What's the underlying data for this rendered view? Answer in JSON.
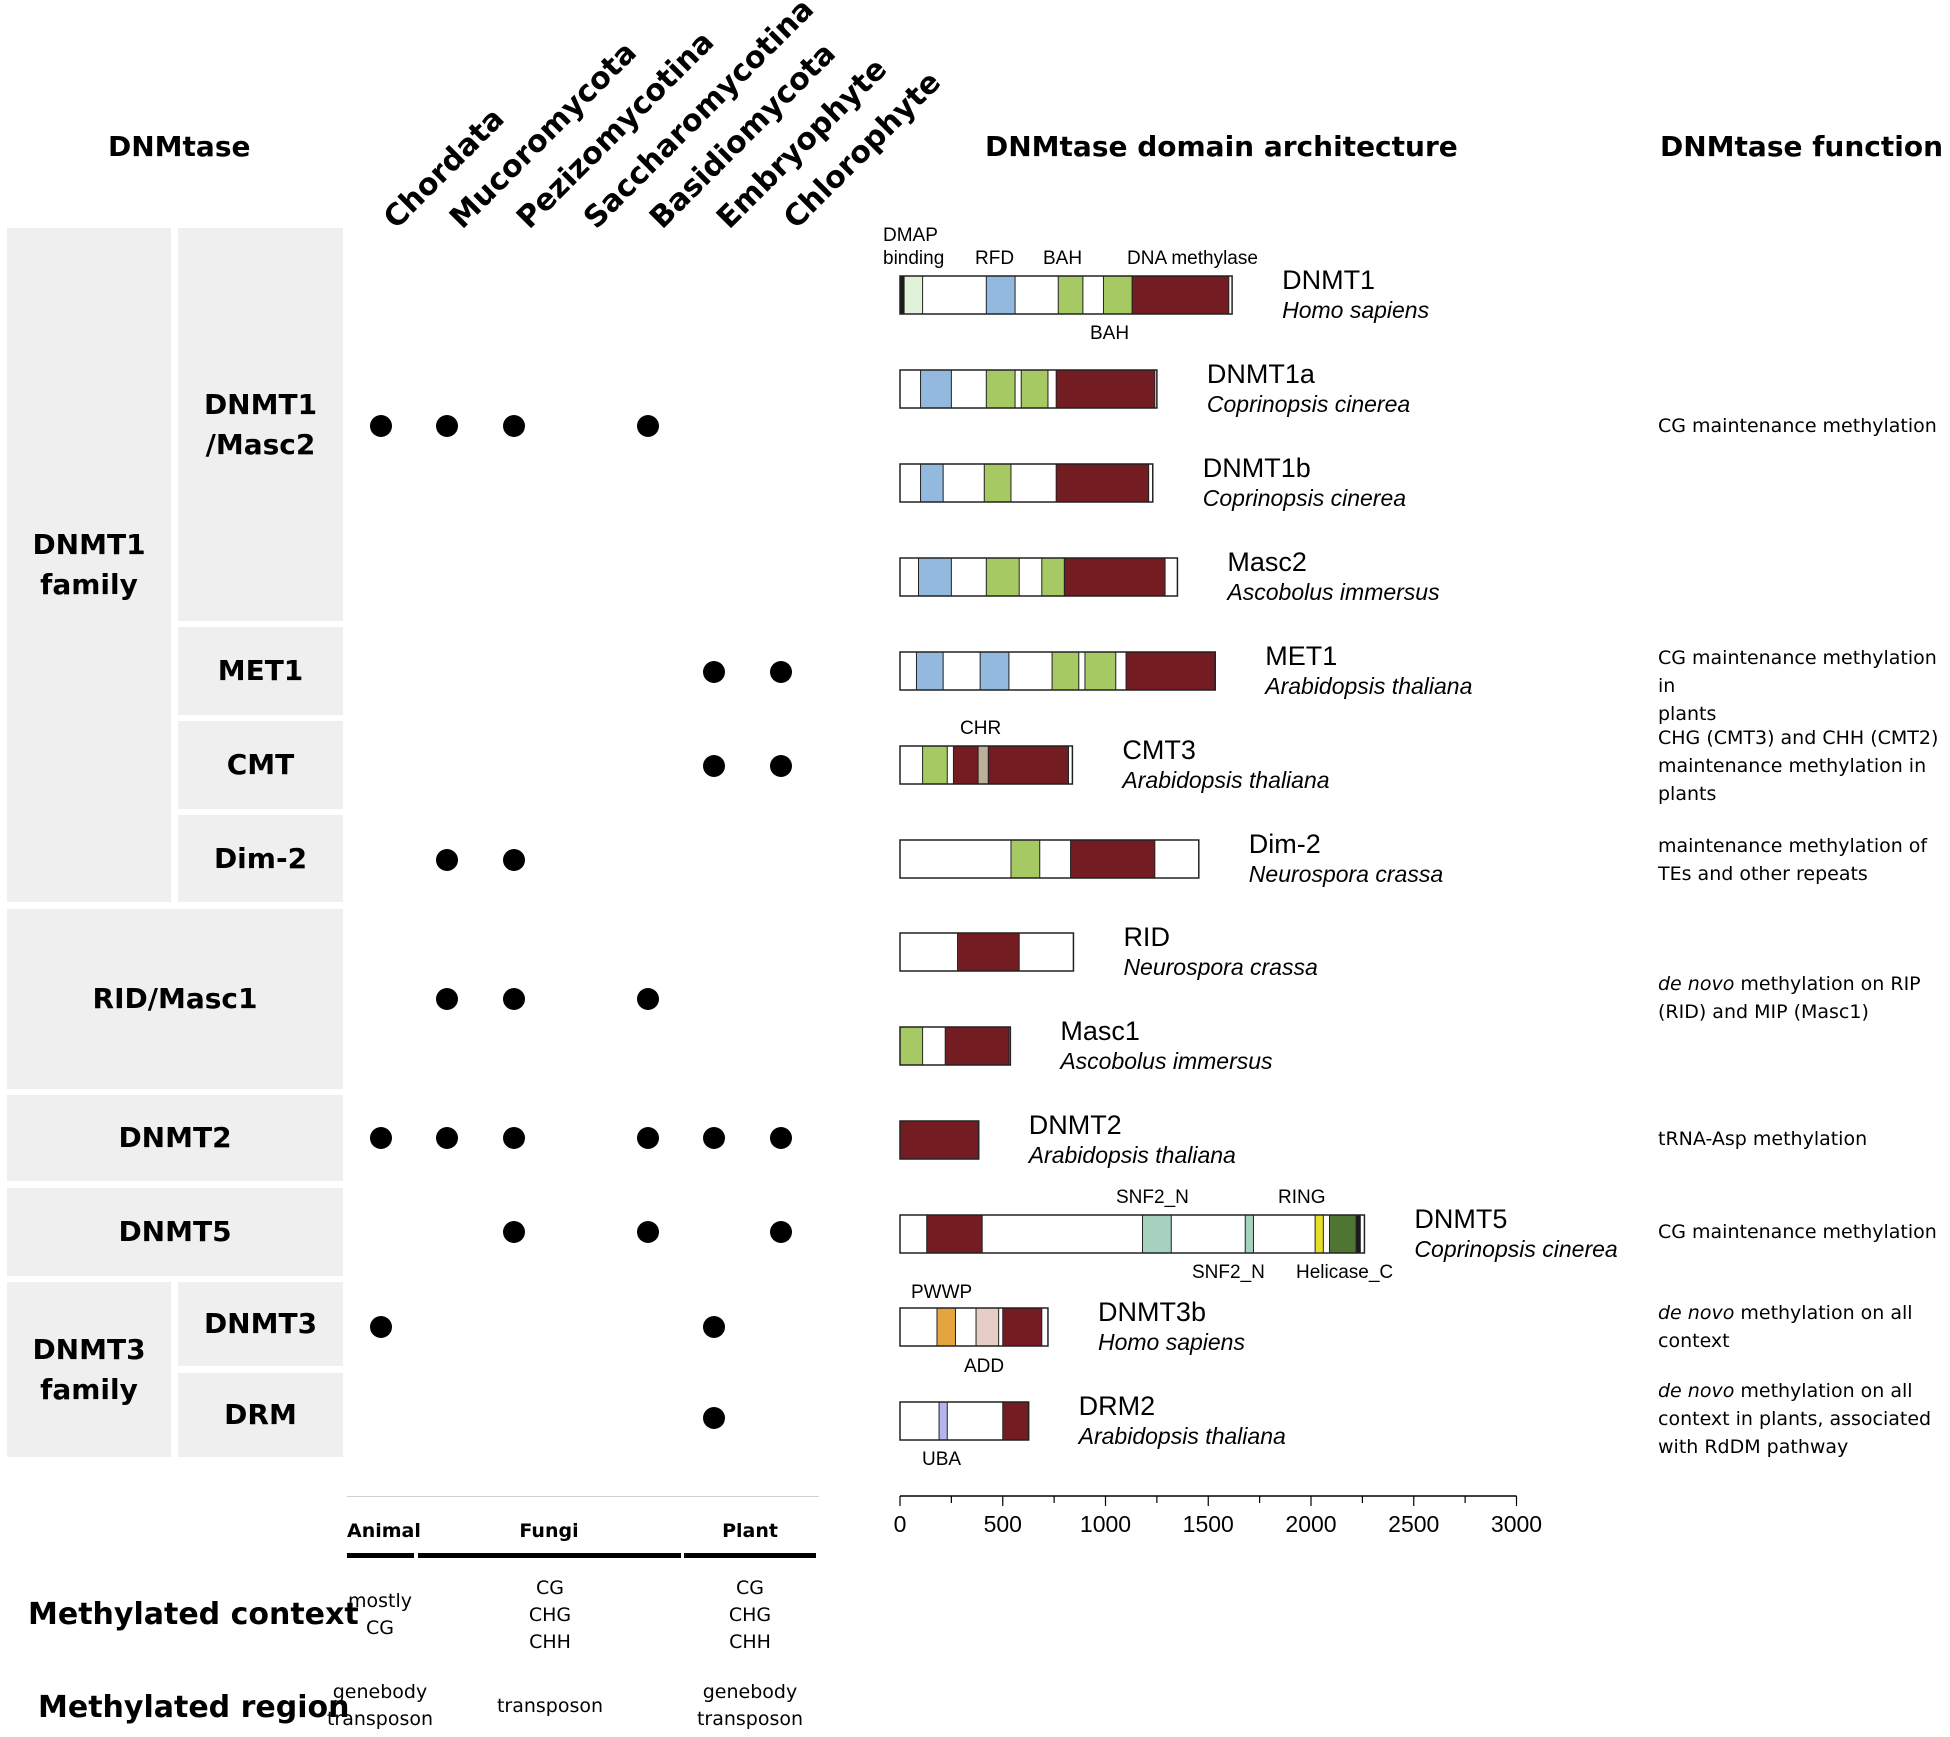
{
  "headers": {
    "dnmtase": "DNMtase",
    "architecture": "DNMtase domain architecture",
    "function": "DNMtase function"
  },
  "taxa": [
    "Chordata",
    "Mucoromycota",
    "Pezizomycotina",
    "Saccharomycotina",
    "Basidiomycota",
    "Embryophyte",
    "Chlorophyte"
  ],
  "families": {
    "dnmt1_family": [
      "DNMT1",
      "family"
    ],
    "dnmt3_family": [
      "DNMT3",
      "family"
    ]
  },
  "subfamilies": {
    "dnmt1_masc2": [
      "DNMT1",
      "/Masc2"
    ],
    "met1": "MET1",
    "cmt": "CMT",
    "dim2": "Dim-2",
    "rid_masc1": "RID/Masc1",
    "dnmt2": "DNMT2",
    "dnmt5": "DNMT5",
    "dnmt3": "DNMT3",
    "drm": "DRM"
  },
  "presence": {
    "dnmt1_masc2": [
      true,
      true,
      true,
      false,
      true,
      false,
      false
    ],
    "met1": [
      false,
      false,
      false,
      false,
      false,
      true,
      true
    ],
    "cmt": [
      false,
      false,
      false,
      false,
      false,
      true,
      true
    ],
    "dim2": [
      false,
      true,
      true,
      false,
      false,
      false,
      false
    ],
    "rid_masc1": [
      false,
      true,
      true,
      false,
      true,
      false,
      false
    ],
    "dnmt2": [
      true,
      true,
      true,
      false,
      true,
      true,
      true
    ],
    "dnmt5": [
      false,
      false,
      true,
      false,
      true,
      false,
      true
    ],
    "dnmt3": [
      true,
      false,
      false,
      false,
      false,
      true,
      false
    ],
    "drm": [
      false,
      false,
      false,
      false,
      false,
      true,
      false
    ]
  },
  "functions": {
    "dnmt1_masc2": [
      "CG maintenance methylation"
    ],
    "met1": [
      "CG maintenance methylation in",
      "plants"
    ],
    "cmt": [
      "CHG (CMT3) and CHH (CMT2)",
      "maintenance methylation in",
      "plants"
    ],
    "dim2": [
      "maintenance methylation of",
      "TEs and other repeats"
    ],
    "rid_masc1_italic": "de novo",
    "rid_masc1": [
      " methylation on RIP",
      "(RID) and MIP (Masc1)"
    ],
    "dnmt2": [
      "tRNA-Asp methylation"
    ],
    "dnmt5": [
      "CG maintenance methylation"
    ],
    "dnmt3_italic": "de novo",
    "dnmt3": [
      " methylation on all",
      "context"
    ],
    "drm_italic": "de novo",
    "drm": [
      " methylation on all",
      "context in plants, associated",
      "with RdDM pathway"
    ]
  },
  "colors": {
    "blue": "#94b9de",
    "green": "#a6c964",
    "darkred": "#731c22",
    "lightgreen": "#e2f2da",
    "teal": "#a6d1bf",
    "tan": "#bdb09a",
    "orange": "#e4a43e",
    "pink": "#e6cdc5",
    "lavender": "#b5b5ec",
    "yellow": "#e8de26",
    "darkgreen": "#4e7632",
    "black": "#1a1a1a",
    "label_bg": "#efefef"
  },
  "domain_labels": {
    "dmap": [
      "DMAP",
      "binding"
    ],
    "rfd": "RFD",
    "bah_top": "BAH",
    "dna_methylase": "DNA methylase",
    "bah_bottom": "BAH",
    "chr": "CHR",
    "snf2n_top": "SNF2_N",
    "ring": "RING",
    "snf2n_bottom": "SNF2_N",
    "helicase": "Helicase_C",
    "pwwp": "PWWP",
    "add": "ADD",
    "uba": "UBA"
  },
  "proteins": [
    {
      "name": "DNMT1",
      "species": "Homo sapiens",
      "length": 1616,
      "domains": [
        [
          0,
          20,
          "black"
        ],
        [
          20,
          110,
          "lightgreen"
        ],
        [
          420,
          560,
          "blue"
        ],
        [
          770,
          890,
          "green"
        ],
        [
          990,
          1130,
          "green"
        ],
        [
          1130,
          1600,
          "darkred"
        ]
      ]
    },
    {
      "name": "DNMT1a",
      "species": "Coprinopsis cinerea",
      "length": 1250,
      "domains": [
        [
          100,
          250,
          "blue"
        ],
        [
          420,
          560,
          "green"
        ],
        [
          590,
          720,
          "green"
        ],
        [
          760,
          1240,
          "darkred"
        ]
      ]
    },
    {
      "name": "DNMT1b",
      "species": "Coprinopsis cinerea",
      "length": 1230,
      "domains": [
        [
          100,
          210,
          "blue"
        ],
        [
          410,
          540,
          "green"
        ],
        [
          760,
          1210,
          "darkred"
        ]
      ]
    },
    {
      "name": "Masc2",
      "species": "Ascobolus immersus",
      "length": 1350,
      "domains": [
        [
          90,
          250,
          "blue"
        ],
        [
          420,
          580,
          "green"
        ],
        [
          690,
          800,
          "green"
        ],
        [
          800,
          1290,
          "darkred"
        ]
      ]
    },
    {
      "name": "MET1",
      "species": "Arabidopsis thaliana",
      "length": 1534,
      "domains": [
        [
          80,
          210,
          "blue"
        ],
        [
          390,
          530,
          "blue"
        ],
        [
          740,
          870,
          "green"
        ],
        [
          900,
          1050,
          "green"
        ],
        [
          1100,
          1534,
          "darkred"
        ]
      ]
    },
    {
      "name": "CMT3",
      "species": "Arabidopsis thaliana",
      "length": 839,
      "domains": [
        [
          110,
          230,
          "green"
        ],
        [
          260,
          380,
          "darkred"
        ],
        [
          380,
          430,
          "tan"
        ],
        [
          430,
          820,
          "darkred"
        ]
      ]
    },
    {
      "name": "Dim-2",
      "species": "Neurospora crassa",
      "length": 1454,
      "domains": [
        [
          540,
          680,
          "green"
        ],
        [
          830,
          1240,
          "darkred"
        ]
      ]
    },
    {
      "name": "RID",
      "species": "Neurospora crassa",
      "length": 844,
      "domains": [
        [
          280,
          580,
          "darkred"
        ]
      ]
    },
    {
      "name": "Masc1",
      "species": "Ascobolus immersus",
      "length": 537,
      "domains": [
        [
          0,
          110,
          "green"
        ],
        [
          220,
          530,
          "darkred"
        ]
      ]
    },
    {
      "name": "DNMT2",
      "species": "Arabidopsis thaliana",
      "length": 383,
      "domains": [
        [
          0,
          383,
          "darkred"
        ]
      ]
    },
    {
      "name": "DNMT5",
      "species": "Coprinopsis cinerea",
      "length": 2260,
      "domains": [
        [
          130,
          400,
          "darkred"
        ],
        [
          1180,
          1320,
          "teal"
        ],
        [
          1680,
          1720,
          "teal"
        ],
        [
          2020,
          2060,
          "yellow"
        ],
        [
          2090,
          2220,
          "darkgreen"
        ],
        [
          2220,
          2240,
          "black"
        ]
      ]
    },
    {
      "name": "DNMT3b",
      "species": "Homo sapiens",
      "length": 720,
      "domains": [
        [
          180,
          270,
          "orange"
        ],
        [
          370,
          480,
          "pink"
        ],
        [
          500,
          690,
          "darkred"
        ]
      ]
    },
    {
      "name": "DRM2",
      "species": "Arabidopsis thaliana",
      "length": 626,
      "domains": [
        [
          190,
          230,
          "lavender"
        ],
        [
          500,
          626,
          "darkred"
        ]
      ]
    }
  ],
  "axis": {
    "min": 0,
    "max": 3000,
    "ticks": [
      "0",
      "500",
      "1000",
      "1500",
      "2000",
      "2500",
      "3000"
    ]
  },
  "bottom": {
    "groups": [
      "Animal",
      "Fungi",
      "Plant"
    ],
    "methylated_context_label": "Methylated context",
    "methylated_region_label": "Methylated region",
    "context": [
      [
        "mostly",
        "CG"
      ],
      [
        "CG",
        "CHG",
        "CHH"
      ],
      [
        "CG",
        "CHG",
        "CHH"
      ]
    ],
    "region": [
      [
        "genebody",
        "transposon"
      ],
      [
        "transposon"
      ],
      [
        "genebody",
        "transposon"
      ]
    ]
  }
}
